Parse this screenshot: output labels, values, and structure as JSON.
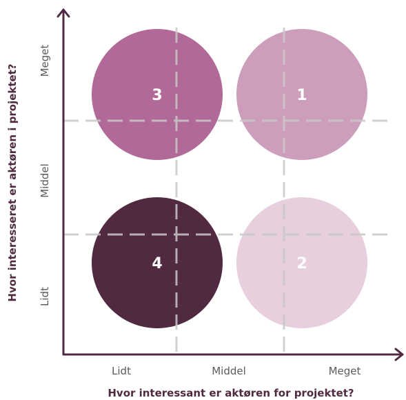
{
  "x_axis": {
    "title": "Hvor interessant er aktøren for projektet?",
    "ticks": [
      "Lidt",
      "Middel",
      "Meget"
    ]
  },
  "y_axis": {
    "title": "Hvor interesseret er aktøren i projektet?",
    "ticks": [
      "Lidt",
      "Middel",
      "Meget"
    ]
  },
  "quadrants": [
    {
      "number": "3",
      "interest_for_project": "Lidt",
      "interest_in_project": "Meget",
      "color": "#a85a8c"
    },
    {
      "number": "1",
      "interest_for_project": "Meget",
      "interest_in_project": "Meget",
      "color": "#c794b4"
    },
    {
      "number": "4",
      "interest_for_project": "Lidt",
      "interest_in_project": "Lidt",
      "color": "#512a42"
    },
    {
      "number": "2",
      "interest_for_project": "Meget",
      "interest_in_project": "Lidt",
      "color": "#e5cad9"
    }
  ],
  "colors": {
    "axis": "#4f2a41",
    "grid": "#c8c8c8"
  }
}
